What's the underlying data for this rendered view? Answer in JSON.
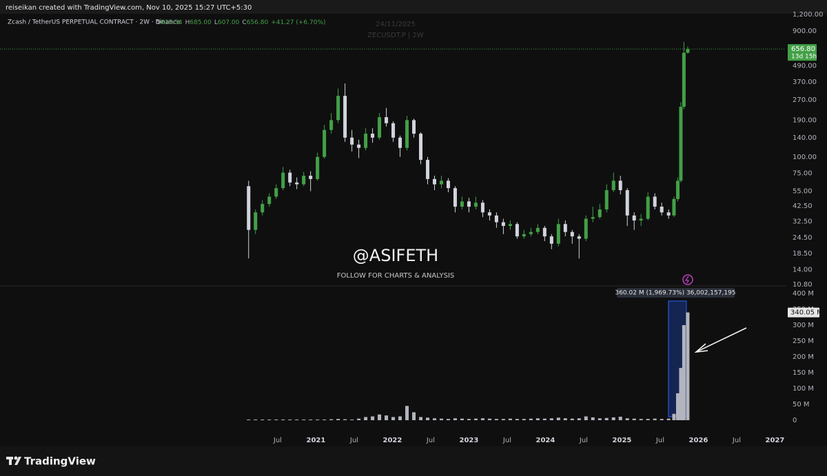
{
  "header": {
    "credit": "reiseikan created with TradingView.com, Nov 10, 2025 15:27 UTC+5:30"
  },
  "footer": {
    "brand": "TradingView"
  },
  "chart_data": {
    "type": "candlestick",
    "symbol": "Zcash / TetherUS PERPETUAL CONTRACT · 2W · Binance",
    "ohlc_legend": {
      "o_label": "O",
      "open": "615.54",
      "h_label": "H",
      "high": "685.00",
      "l_label": "L",
      "low": "607.00",
      "c_label": "C",
      "close": "656.80",
      "change": "+41.27 (+6.70%)"
    },
    "watermark_date": "24/11/2025",
    "watermark_symbol": "ZECUSDT.P | 2W",
    "annotations": [
      "@ASIFETH",
      "FOLLOW FOR CHARTS & ANALYSIS"
    ],
    "x": [
      2020.12,
      2020.21,
      2020.3,
      2020.39,
      2020.48,
      2020.57,
      2020.66,
      2020.75,
      2020.84,
      2020.93,
      2021.02,
      2021.11,
      2021.2,
      2021.29,
      2021.38,
      2021.47,
      2021.56,
      2021.65,
      2021.74,
      2021.83,
      2021.92,
      2022.01,
      2022.1,
      2022.19,
      2022.28,
      2022.37,
      2022.46,
      2022.55,
      2022.64,
      2022.73,
      2022.82,
      2022.91,
      2023.0,
      2023.09,
      2023.18,
      2023.27,
      2023.36,
      2023.45,
      2023.54,
      2023.63,
      2023.72,
      2023.81,
      2023.9,
      2023.99,
      2024.08,
      2024.17,
      2024.26,
      2024.35,
      2024.44,
      2024.53,
      2024.62,
      2024.71,
      2024.8,
      2024.89,
      2024.98,
      2025.07,
      2025.16,
      2025.25,
      2025.34,
      2025.43,
      2025.52,
      2025.61,
      2025.68,
      2025.73,
      2025.77,
      2025.81,
      2025.86
    ],
    "open": [
      60,
      28,
      38,
      44,
      50,
      58,
      76,
      64,
      62,
      72,
      68,
      100,
      160,
      190,
      290,
      140,
      124,
      117,
      150,
      140,
      200,
      180,
      140,
      117,
      190,
      150,
      95,
      68,
      62,
      66,
      58,
      42,
      46,
      42,
      45,
      38,
      36,
      32,
      30,
      31,
      25,
      26,
      27,
      29,
      25,
      22,
      31,
      27,
      25,
      24,
      34,
      35,
      40,
      56,
      66,
      56,
      36,
      33,
      34,
      50,
      42,
      38,
      36,
      48,
      66,
      240,
      615.54
    ],
    "high": [
      66,
      40,
      47,
      53,
      62,
      84,
      80,
      70,
      77,
      78,
      108,
      175,
      215,
      330,
      360,
      160,
      135,
      165,
      165,
      215,
      235,
      186,
      145,
      205,
      195,
      154,
      100,
      72,
      72,
      69,
      60,
      50,
      49,
      50,
      47,
      40,
      38,
      34,
      33,
      32,
      28,
      29,
      31,
      30,
      26,
      34,
      33,
      28,
      26,
      36,
      42,
      44,
      62,
      76,
      72,
      58,
      38,
      37,
      54,
      53,
      45,
      40,
      50,
      70,
      260,
      744,
      685
    ],
    "low": [
      17,
      26,
      36,
      42,
      48,
      56,
      60,
      57,
      60,
      55,
      66,
      97,
      150,
      180,
      130,
      110,
      98,
      112,
      128,
      135,
      170,
      130,
      100,
      112,
      140,
      88,
      62,
      56,
      58,
      54,
      38,
      40,
      38,
      40,
      35,
      33,
      29,
      26,
      28,
      24,
      24,
      25,
      26,
      23,
      20,
      21,
      25,
      22,
      17,
      23,
      32,
      34,
      38,
      54,
      52,
      30,
      28,
      30,
      33,
      40,
      36,
      34,
      35,
      46,
      64,
      230,
      607
    ],
    "close": [
      28,
      38,
      44,
      50,
      58,
      76,
      64,
      62,
      72,
      68,
      100,
      160,
      190,
      290,
      140,
      124,
      117,
      150,
      140,
      200,
      180,
      140,
      117,
      190,
      150,
      95,
      68,
      62,
      66,
      58,
      42,
      46,
      42,
      45,
      38,
      36,
      32,
      30,
      31,
      25,
      26,
      27,
      29,
      25,
      22,
      31,
      27,
      25,
      24,
      34,
      35,
      40,
      56,
      66,
      56,
      36,
      33,
      34,
      50,
      42,
      38,
      36,
      48,
      66,
      240,
      615.53,
      656.8
    ],
    "up_color": "#43a047",
    "down_color": "#d1d4dc",
    "log_scale": true,
    "ylim": [
      10.8,
      1200
    ],
    "yticks": [
      {
        "value": 1200,
        "label": "1,200.00"
      },
      {
        "value": 900,
        "label": "900.00"
      },
      {
        "value": 490,
        "label": "490.00"
      },
      {
        "value": 370,
        "label": "370.00"
      },
      {
        "value": 270,
        "label": "270.00"
      },
      {
        "value": 190,
        "label": "190.00"
      },
      {
        "value": 140,
        "label": "140.00"
      },
      {
        "value": 100,
        "label": "100.00"
      },
      {
        "value": 75,
        "label": "75.00"
      },
      {
        "value": 55,
        "label": "55.00"
      },
      {
        "value": 42.5,
        "label": "42.50"
      },
      {
        "value": 32.5,
        "label": "32.50"
      },
      {
        "value": 24.5,
        "label": "24.50"
      },
      {
        "value": 18.5,
        "label": "18.50"
      },
      {
        "value": 14,
        "label": "14.00"
      },
      {
        "value": 10.8,
        "label": "10.80"
      }
    ],
    "last_price": {
      "value": 656.8,
      "label": "656.80"
    },
    "countdown": "13d 15h",
    "xlim": [
      2016.87,
      2027.14
    ],
    "xticks": [
      {
        "value": 2020.5,
        "label": "Jul"
      },
      2021,
      {
        "value": 2021.5,
        "label": "Jul"
      },
      2022,
      {
        "value": 2022.5,
        "label": "Jul"
      },
      2023,
      {
        "value": 2023.5,
        "label": "Jul"
      },
      2024,
      {
        "value": 2024.5,
        "label": "Jul"
      },
      2025,
      {
        "value": 2025.5,
        "label": "Jul"
      },
      2026,
      {
        "value": 2026.5,
        "label": "Jul"
      },
      2027
    ],
    "volume": {
      "values": [
        1,
        1,
        1,
        1,
        1,
        1,
        1,
        1,
        1,
        1,
        1,
        2,
        3,
        4,
        3,
        2,
        5,
        10,
        12,
        18,
        15,
        10,
        12,
        45,
        25,
        10,
        8,
        6,
        5,
        4,
        6,
        5,
        4,
        5,
        6,
        5,
        4,
        4,
        5,
        4,
        4,
        5,
        6,
        5,
        6,
        8,
        6,
        5,
        6,
        12,
        9,
        6,
        7,
        9,
        11,
        6,
        5,
        4,
        4,
        5,
        4,
        5,
        20,
        85,
        165,
        300,
        340.05
      ],
      "color": "#b2b5be",
      "ylim": [
        0,
        400
      ],
      "yticks": [
        0,
        {
          "value": 50,
          "label": "50 M"
        },
        {
          "value": 100,
          "label": "100 M"
        },
        {
          "value": 150,
          "label": "150 M"
        },
        {
          "value": 200,
          "label": "200 M"
        },
        {
          "value": 250,
          "label": "250 M"
        },
        {
          "value": 300,
          "label": "300 M"
        },
        {
          "value": 350,
          "label": "350 M"
        },
        {
          "value": 400,
          "label": "400 M"
        }
      ],
      "last": {
        "value": 340.05,
        "label": "340.05 M"
      },
      "measure": "360.02 M (1,969.73%) 36,002,157,195"
    }
  }
}
